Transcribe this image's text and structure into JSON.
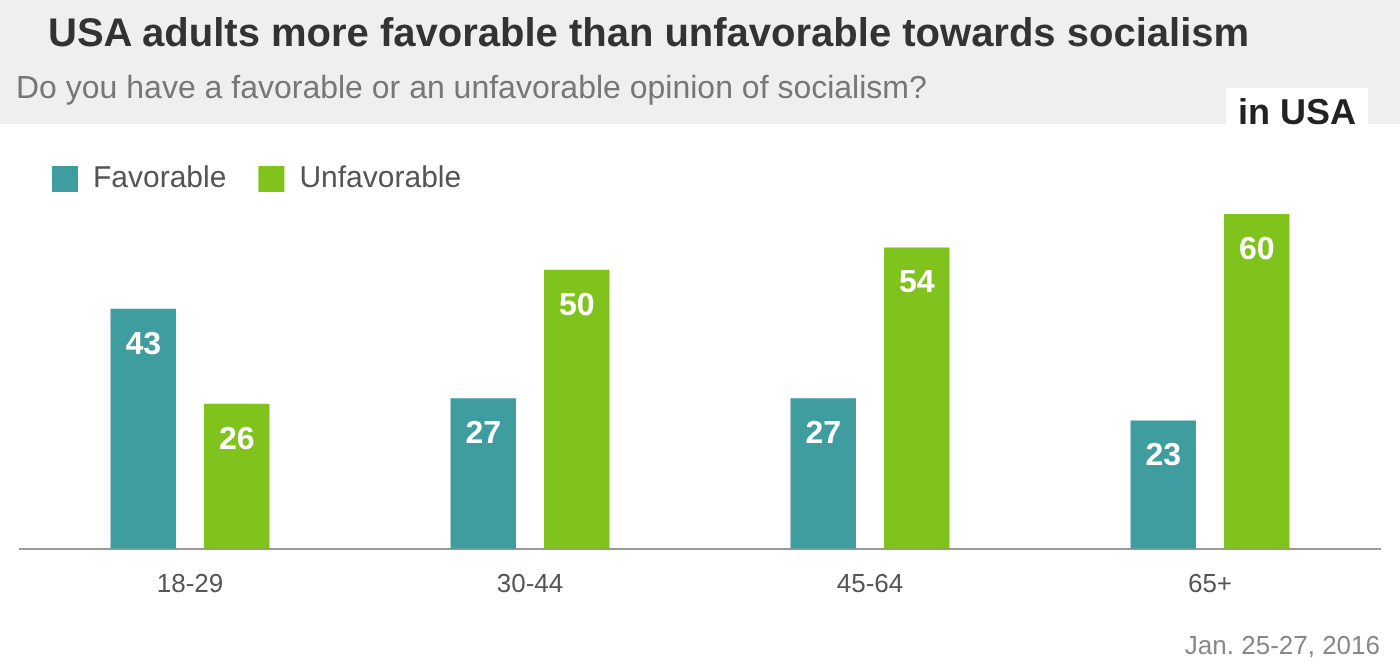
{
  "chart_data": {
    "type": "bar",
    "title": "USA adults more favorable than unfavorable towards socialism",
    "subtitle": "Do you have a favorable or an unfavorable opinion of socialism?",
    "categories": [
      "18-29",
      "30-44",
      "45-64",
      "65+"
    ],
    "series": [
      {
        "name": "Favorable",
        "color": "#3f9d9f",
        "values": [
          43,
          27,
          27,
          23
        ]
      },
      {
        "name": "Unfavorable",
        "color": "#7fc31c",
        "values": [
          26,
          50,
          54,
          60
        ]
      }
    ],
    "data_labels": true,
    "legend": "top left",
    "annotations": [
      "in USA",
      "Jan. 25-27, 2016"
    ]
  }
}
